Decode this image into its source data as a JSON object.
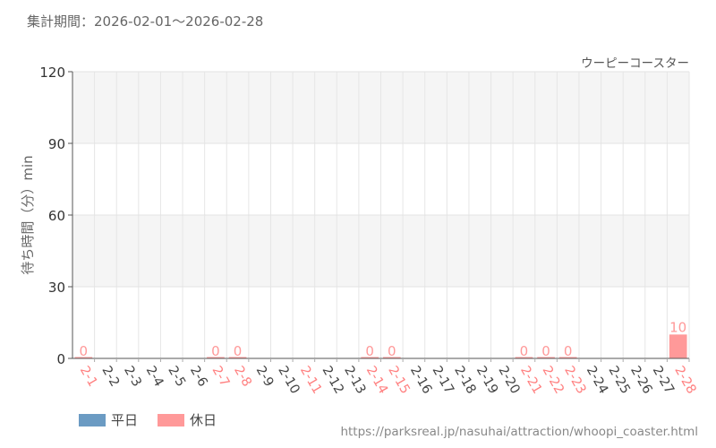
{
  "header": {
    "period": "集計期間：2026-02-01～2026-02-28"
  },
  "legend": [
    {
      "label": "平日",
      "color": "#6b9bc3"
    },
    {
      "label": "休日",
      "color": "#ff9999"
    }
  ],
  "source": "https://parksreal.jp/nasuhai/attraction/whoopi_coaster.html",
  "chart_data": {
    "type": "bar",
    "title": "ウーピーコースター",
    "ylabel": "待ち時間（分）min",
    "ylim": [
      0,
      120
    ],
    "yticks": [
      0,
      30,
      60,
      90,
      120
    ],
    "grid": true,
    "legend_position": "bottom-left",
    "colors": {
      "weekday": "#6b9bc3",
      "holiday": "#ff9999",
      "weekday_label": "#444444",
      "holiday_label": "#ff8080"
    },
    "categories": [
      "2-1",
      "2-2",
      "2-3",
      "2-4",
      "2-5",
      "2-6",
      "2-7",
      "2-8",
      "2-9",
      "2-10",
      "2-11",
      "2-12",
      "2-13",
      "2-14",
      "2-15",
      "2-16",
      "2-17",
      "2-18",
      "2-19",
      "2-20",
      "2-21",
      "2-22",
      "2-23",
      "2-24",
      "2-25",
      "2-26",
      "2-27",
      "2-28"
    ],
    "holiday": [
      true,
      false,
      false,
      false,
      false,
      false,
      true,
      true,
      false,
      false,
      true,
      false,
      false,
      true,
      true,
      false,
      false,
      false,
      false,
      false,
      true,
      true,
      true,
      false,
      false,
      false,
      false,
      true
    ],
    "values": [
      0,
      null,
      null,
      null,
      null,
      null,
      0,
      0,
      null,
      null,
      null,
      null,
      null,
      0,
      0,
      null,
      null,
      null,
      null,
      null,
      0,
      0,
      0,
      null,
      null,
      null,
      null,
      10
    ],
    "data_labels": [
      "0",
      "",
      "",
      "",
      "",
      "",
      "0",
      "0",
      "",
      "",
      "",
      "",
      "",
      "0",
      "0",
      "",
      "",
      "",
      "",
      "",
      "0",
      "0",
      "0",
      "",
      "",
      "",
      "",
      "10"
    ]
  }
}
